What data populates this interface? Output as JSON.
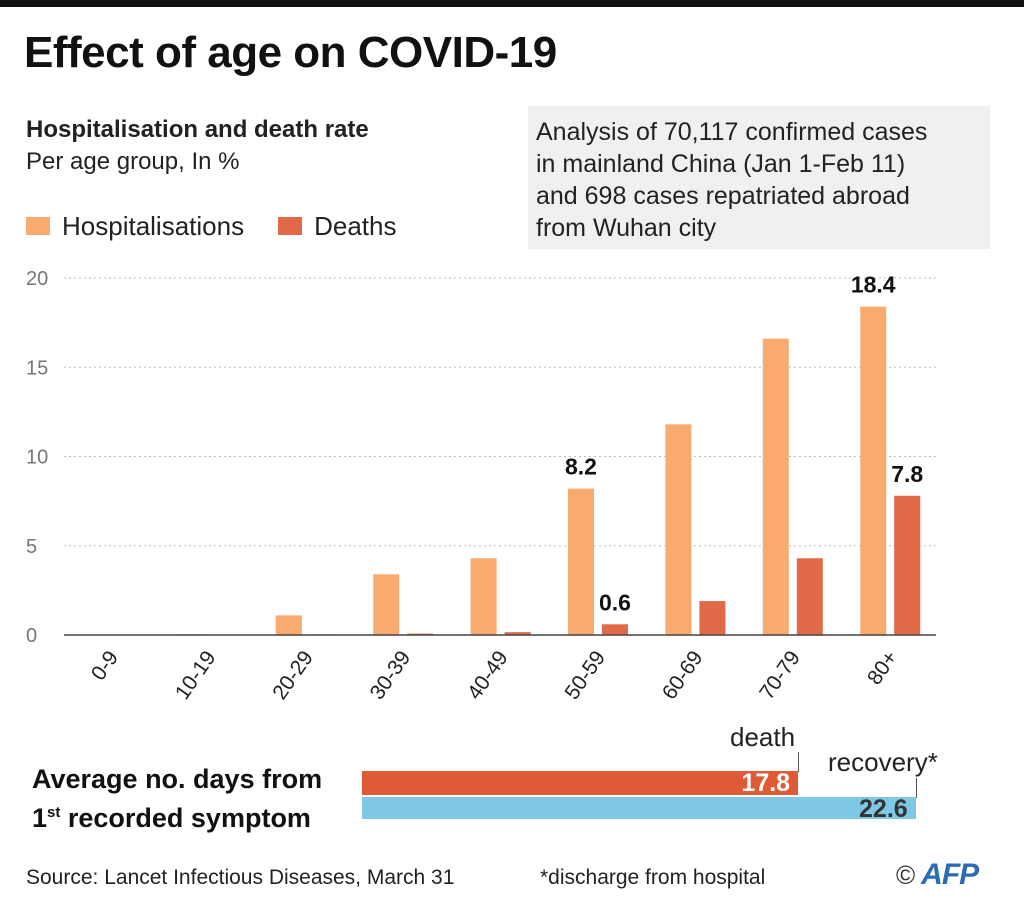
{
  "title": "Effect of age on COVID-19",
  "subtitle": "Hospitalisation and death rate",
  "subtitle2": "Per age group, In %",
  "legend": {
    "hosp": "Hospitalisations",
    "deaths": "Deaths"
  },
  "note": {
    "lines": [
      "Analysis of 70,117 confirmed cases",
      "in mainland China (Jan 1-Feb 11)",
      "and 698 cases repatriated abroad",
      "from Wuhan city"
    ]
  },
  "colors": {
    "hosp": "#f9aa6f",
    "deaths": "#e06a48",
    "death_bar": "#e05a36",
    "recovery_bar": "#7ec8e6",
    "grid": "#bbbbbb"
  },
  "chart_data": {
    "type": "bar",
    "title": "Hospitalisation and death rate",
    "ylabel": "Per age group, In %",
    "xlabel": "",
    "ylim": [
      0,
      20
    ],
    "yticks": [
      0,
      5,
      10,
      15,
      20
    ],
    "grid": true,
    "legend_position": "top-left",
    "categories": [
      "0-9",
      "10-19",
      "20-29",
      "30-39",
      "40-49",
      "50-59",
      "60-69",
      "70-79",
      "80+"
    ],
    "series": [
      {
        "name": "Hospitalisations",
        "values": [
          0.0,
          0.04,
          1.1,
          3.4,
          4.3,
          8.2,
          11.8,
          16.6,
          18.4
        ]
      },
      {
        "name": "Deaths",
        "values": [
          0.0,
          0.01,
          0.03,
          0.08,
          0.16,
          0.6,
          1.9,
          4.3,
          7.8
        ]
      }
    ],
    "value_labels": [
      {
        "series": 0,
        "category": 5,
        "text": "8.2"
      },
      {
        "series": 1,
        "category": 5,
        "text": "0.6"
      },
      {
        "series": 0,
        "category": 8,
        "text": "18.4"
      },
      {
        "series": 1,
        "category": 8,
        "text": "7.8"
      }
    ]
  },
  "days": {
    "label_line1": "Average no. days from",
    "label_line2_num": "1",
    "label_line2_sup": "st",
    "label_line2_rest": " recorded symptom",
    "death_label": "death",
    "recovery_label": "recovery*",
    "death_value": 17.8,
    "recovery_value": 22.6,
    "death_text": "17.8",
    "recovery_text": "22.6"
  },
  "source": "Source: Lancet Infectious Diseases, March 31",
  "footnote": "*discharge from hospital",
  "credit": {
    "copyright": "©",
    "logo": "AFP"
  }
}
